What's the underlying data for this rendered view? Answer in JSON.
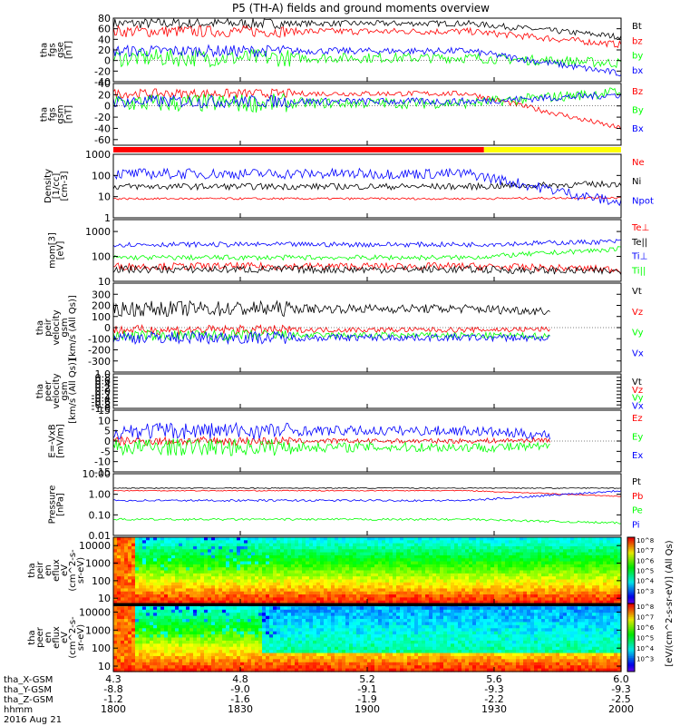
{
  "title": "P5 (TH-A) fields and ground moments overview",
  "colors": {
    "black": "#000000",
    "red": "#ff0000",
    "green": "#00ff00",
    "blue": "#0000ff",
    "yellow": "#ffff00",
    "grid": "#000000"
  },
  "chart_data": [
    {
      "type": "line",
      "name": "fgs-gse",
      "ylabel": [
        "tha",
        "fgs",
        "gse",
        "[nT]"
      ],
      "ylim": [
        -40,
        80
      ],
      "yticks": [
        "80",
        "60",
        "40",
        "20",
        "0",
        "-20",
        "-40"
      ],
      "series": [
        {
          "name": "Bt",
          "color": "black",
          "base": 70,
          "noise": 7,
          "end": 45
        },
        {
          "name": "bz",
          "color": "red",
          "base": 55,
          "noise": 8,
          "end": 30
        },
        {
          "name": "by",
          "color": "green",
          "base": 5,
          "noise": 12,
          "end": -5
        },
        {
          "name": "bx",
          "color": "blue",
          "base": 18,
          "noise": 8,
          "end": -25
        }
      ]
    },
    {
      "type": "line",
      "name": "fgs-gsm",
      "ylabel": [
        "tha",
        "fgs",
        "gsm",
        "[nT]"
      ],
      "ylim": [
        -70,
        40
      ],
      "yticks": [
        "40",
        "20",
        "0",
        "-20",
        "-40",
        "-60"
      ],
      "series": [
        {
          "name": "Bz",
          "color": "red",
          "base": 22,
          "noise": 6,
          "end": -40
        },
        {
          "name": "By",
          "color": "green",
          "base": 5,
          "noise": 12,
          "end": 25
        },
        {
          "name": "Bx",
          "color": "blue",
          "base": 8,
          "noise": 8,
          "end": 20
        }
      ]
    },
    {
      "type": "line",
      "name": "density",
      "ylabel": [
        "Density",
        "[1/cc]",
        "[cm-3]"
      ],
      "scale": "log",
      "ylim": [
        1,
        1000
      ],
      "yticks": [
        "1000",
        "100",
        "10",
        "1"
      ],
      "series": [
        {
          "name": "Ne",
          "color": "red",
          "base": 8,
          "noise": 0.1,
          "end": 9
        },
        {
          "name": "Ni",
          "color": "black",
          "base": 30,
          "noise": 0.3,
          "end": 40
        },
        {
          "name": "Npot",
          "color": "blue",
          "base": 120,
          "noise": 0.5,
          "end": 5
        }
      ]
    },
    {
      "type": "line",
      "name": "temperature",
      "ylabel": [
        "mom[3]",
        "[eV]"
      ],
      "scale": "log",
      "ylim": [
        10,
        3000
      ],
      "yticks": [
        "1000",
        "100",
        "10"
      ],
      "series": [
        {
          "name": "Te⊥",
          "color": "red",
          "base": 40,
          "noise": 0.3,
          "end": 30
        },
        {
          "name": "Te||",
          "color": "black",
          "base": 30,
          "noise": 0.3,
          "end": 25
        },
        {
          "name": "Ti⊥",
          "color": "blue",
          "base": 300,
          "noise": 0.2,
          "end": 400
        },
        {
          "name": "Ti||",
          "color": "green",
          "base": 90,
          "noise": 0.2,
          "end": 200
        }
      ]
    },
    {
      "type": "line",
      "name": "peir-velocity",
      "ylabel": [
        "tha",
        "peir",
        "velocity",
        "gsm",
        "[km/s (All Qs)]"
      ],
      "ylim": [
        -400,
        400
      ],
      "yticks": [
        "300",
        "200",
        "100",
        "0",
        "-100",
        "-200",
        "-300"
      ],
      "series": [
        {
          "name": "Vt",
          "color": "black",
          "base": 170,
          "noise": 50,
          "end": 130
        },
        {
          "name": "Vz",
          "color": "red",
          "base": -20,
          "noise": 30,
          "end": -10
        },
        {
          "name": "Vy",
          "color": "green",
          "base": -70,
          "noise": 35,
          "end": -80
        },
        {
          "name": "Vx",
          "color": "blue",
          "base": -90,
          "noise": 40,
          "end": -100
        }
      ]
    },
    {
      "type": "line",
      "name": "peer-velocity",
      "ylabel": [
        "tha",
        "peer",
        "velocity",
        "gsm",
        "[km/s (All Qs)]"
      ],
      "ylim": [
        -1,
        1
      ],
      "yticks": [
        "1.0",
        "0.8",
        "0.6",
        "0.4",
        "0.2",
        "0.0",
        "-0.2",
        "-0.4",
        "-0.6",
        "-0.8",
        "-1.0"
      ],
      "series": [
        {
          "name": "Vt",
          "color": "black"
        },
        {
          "name": "Vz",
          "color": "red"
        },
        {
          "name": "Vy",
          "color": "green"
        },
        {
          "name": "Vx",
          "color": "blue"
        }
      ]
    },
    {
      "type": "line",
      "name": "efield",
      "ylabel": [
        "E=-VxB",
        "[mV/m]"
      ],
      "ylim": [
        -15,
        15
      ],
      "yticks": [
        "15",
        "10",
        "5",
        "0",
        "-5",
        "-10",
        "-15"
      ],
      "series": [
        {
          "name": "Ez",
          "color": "red",
          "base": 0,
          "noise": 1.5,
          "end": 1
        },
        {
          "name": "Ey",
          "color": "green",
          "base": -3,
          "noise": 3,
          "end": -3
        },
        {
          "name": "Ex",
          "color": "blue",
          "base": 5,
          "noise": 3,
          "end": 1
        }
      ]
    },
    {
      "type": "line",
      "name": "pressure",
      "ylabel": [
        "Pressure",
        "[nPa]"
      ],
      "scale": "log",
      "ylim": [
        0.01,
        10
      ],
      "yticks": [
        "10.00",
        "1.00",
        "0.10",
        "0.01"
      ],
      "series": [
        {
          "name": "Pt",
          "color": "black",
          "base": 2,
          "noise": 0.05,
          "end": 2
        },
        {
          "name": "Pb",
          "color": "red",
          "base": 1.5,
          "noise": 0.05,
          "end": 0.8
        },
        {
          "name": "Pe",
          "color": "green",
          "base": 0.06,
          "noise": 0.1,
          "end": 0.04
        },
        {
          "name": "Pi",
          "color": "blue",
          "base": 0.5,
          "noise": 0.1,
          "end": 1.5
        }
      ]
    },
    {
      "type": "heatmap",
      "name": "peir-en-eflux",
      "ylabel": [
        "tha",
        "peir",
        "en",
        "eflux",
        "eV",
        "(cm^2-s-",
        "sr-eV)"
      ],
      "scale": "log",
      "ylim": [
        5,
        30000
      ],
      "yticks": [
        "10000",
        "1000",
        "100",
        "10"
      ]
    },
    {
      "type": "heatmap",
      "name": "peer-en-eflux",
      "ylabel": [
        "tha",
        "peer",
        "en",
        "eflux",
        "eV",
        "(cm^2-s-",
        "sr-eV)"
      ],
      "scale": "log",
      "ylim": [
        5,
        30000
      ],
      "yticks": [
        "10000",
        "1000",
        "100",
        "10"
      ]
    }
  ],
  "colorbar": {
    "label": "[eV/(cm^2-s-sr-eV)] (All Qs)",
    "ticks_top": [
      "10^8",
      "10^7",
      "10^6",
      "10^5",
      "10^4",
      "10^3"
    ],
    "ticks_bottom": [
      "10^8",
      "10^7",
      "10^6",
      "10^5",
      "10^4",
      "10^3"
    ]
  },
  "xaxis": {
    "labels": [
      "tha_X-GSM",
      "tha_Y-GSM",
      "tha_Z-GSM",
      "hhmm",
      "2016 Aug 21"
    ],
    "columns": [
      [
        "4.3",
        "-8.8",
        "-1.2",
        "1800"
      ],
      [
        "4.8",
        "-9.0",
        "-1.6",
        "1830"
      ],
      [
        "5.2",
        "-9.1",
        "-1.9",
        "1900"
      ],
      [
        "5.6",
        "-9.3",
        "-2.2",
        "1930"
      ],
      [
        "6.0",
        "-9.3",
        "-2.5",
        "2000"
      ]
    ]
  },
  "mode_bar": {
    "segments": [
      {
        "color": "red",
        "from": 0,
        "to": 0.73
      },
      {
        "color": "yellow",
        "from": 0.73,
        "to": 1
      }
    ]
  }
}
